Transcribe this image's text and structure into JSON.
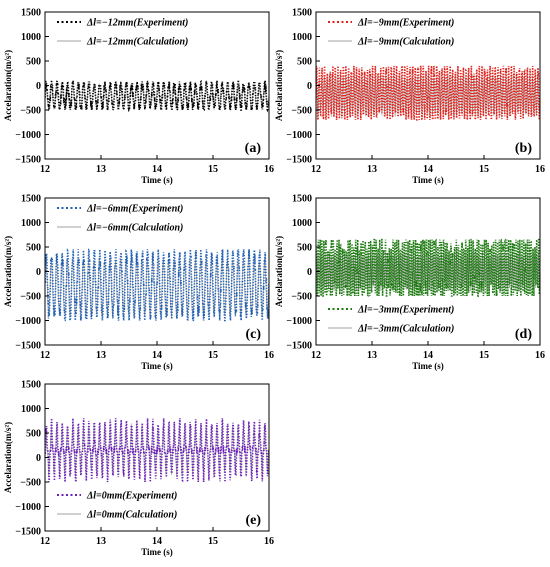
{
  "chart_data": [
    {
      "panel": "(a)",
      "type": "line",
      "xlabel": "Time (s)",
      "ylabel": "Accelaration(m/s²)",
      "xlim": [
        12,
        16
      ],
      "ylim": [
        -1500,
        1500
      ],
      "xticks": [
        "12",
        "13",
        "14",
        "15",
        "16"
      ],
      "yticks": [
        "1500",
        "1000",
        "500",
        "0",
        "−500",
        "−1000",
        "−1500"
      ],
      "legend_position": "top-left",
      "series": [
        {
          "name": "Δl=−12mm(Experiment)",
          "style": "dotted",
          "color": "#000000",
          "freq": 10.5,
          "mean": -150,
          "range": [
            -500,
            80
          ],
          "noise": 100,
          "sharp": 0
        },
        {
          "name": "Δl=−12mm(Calculation)",
          "style": "solid",
          "color": "#a0a0a0",
          "freq": 10.5,
          "mean": -200,
          "range": [
            -500,
            50
          ],
          "noise": 20,
          "sharp": 0
        }
      ]
    },
    {
      "panel": "(b)",
      "type": "line",
      "xlabel": "Time (s)",
      "ylabel": "Accelaration(m/s²)",
      "xlim": [
        12,
        16
      ],
      "ylim": [
        -1500,
        1500
      ],
      "xticks": [
        "12",
        "13",
        "14",
        "15",
        "16"
      ],
      "yticks": [
        "1500",
        "1000",
        "500",
        "0",
        "−500",
        "−1000",
        "−1500"
      ],
      "legend_position": "top-left",
      "series": [
        {
          "name": "Δl=−9mm(Experiment)",
          "style": "dotted",
          "color": "#e0201a",
          "freq": 21,
          "mean": -100,
          "range": [
            -700,
            400
          ],
          "noise": 120,
          "sharp": 0
        },
        {
          "name": "Δl=−9mm(Calculation)",
          "style": "solid",
          "color": "#a0a0a0",
          "freq": 21,
          "mean": -150,
          "range": [
            -650,
            250
          ],
          "noise": 20,
          "sharp": 0
        }
      ]
    },
    {
      "panel": "(c)",
      "type": "line",
      "xlabel": "Time (s)",
      "ylabel": "Accelaration(m/s²)",
      "xlim": [
        12,
        16
      ],
      "ylim": [
        -1500,
        1500
      ],
      "xticks": [
        "12",
        "13",
        "14",
        "15",
        "16"
      ],
      "yticks": [
        "1500",
        "1000",
        "500",
        "0",
        "−500",
        "−1000",
        "−1500"
      ],
      "legend_position": "top-left",
      "series": [
        {
          "name": "Δl=−6mm(Experiment)",
          "style": "dotted",
          "color": "#1f5fb4",
          "freq": 10.5,
          "mean": -150,
          "range": [
            -1000,
            450
          ],
          "noise": 130,
          "sharp": 0
        },
        {
          "name": "Δl=−6mm(Calculation)",
          "style": "solid",
          "color": "#a0a0a0",
          "freq": 10.5,
          "mean": -200,
          "range": [
            -950,
            300
          ],
          "noise": 25,
          "sharp": 0
        }
      ]
    },
    {
      "panel": "(d)",
      "type": "line",
      "xlabel": "Time (s)",
      "ylabel": "Accelaration(m/s²)",
      "xlim": [
        12,
        16
      ],
      "ylim": [
        -1500,
        1500
      ],
      "xticks": [
        "12",
        "13",
        "14",
        "15",
        "16"
      ],
      "yticks": [
        "1500",
        "1000",
        "500",
        "0",
        "−500",
        "−1000",
        "−1500"
      ],
      "legend_position": "bottom-left",
      "series": [
        {
          "name": "Δl=−3mm(Experiment)",
          "style": "dotted",
          "color": "#1e7a12",
          "freq": 30,
          "mean": 0,
          "range": [
            -500,
            650
          ],
          "noise": 220,
          "sharp": 0
        },
        {
          "name": "Δl=−3mm(Calculation)",
          "style": "solid",
          "color": "#a0a0a0",
          "freq": 30,
          "mean": 0,
          "range": [
            -400,
            400
          ],
          "noise": 40,
          "sharp": 0
        }
      ]
    },
    {
      "panel": "(e)",
      "type": "line",
      "xlabel": "Time (s)",
      "ylabel": "Accelaration(m/s²)",
      "xlim": [
        12,
        16
      ],
      "ylim": [
        -1500,
        1500
      ],
      "xticks": [
        "12",
        "13",
        "14",
        "15",
        "16"
      ],
      "yticks": [
        "1500",
        "1000",
        "500",
        "0",
        "−500",
        "−1000",
        "−1500"
      ],
      "legend_position": "bottom-left",
      "series": [
        {
          "name": "Δl=0mm(Experiment)",
          "style": "dotted",
          "color": "#6a1fb8",
          "freq": 10.5,
          "mean": 0,
          "range": [
            -500,
            800
          ],
          "noise": 90,
          "sharp": 1
        },
        {
          "name": "Δl=0mm(Calculation)",
          "style": "solid",
          "color": "#a0a0a0",
          "freq": 10.5,
          "mean": 0,
          "range": [
            -400,
            700
          ],
          "noise": 20,
          "sharp": 1
        }
      ]
    }
  ]
}
